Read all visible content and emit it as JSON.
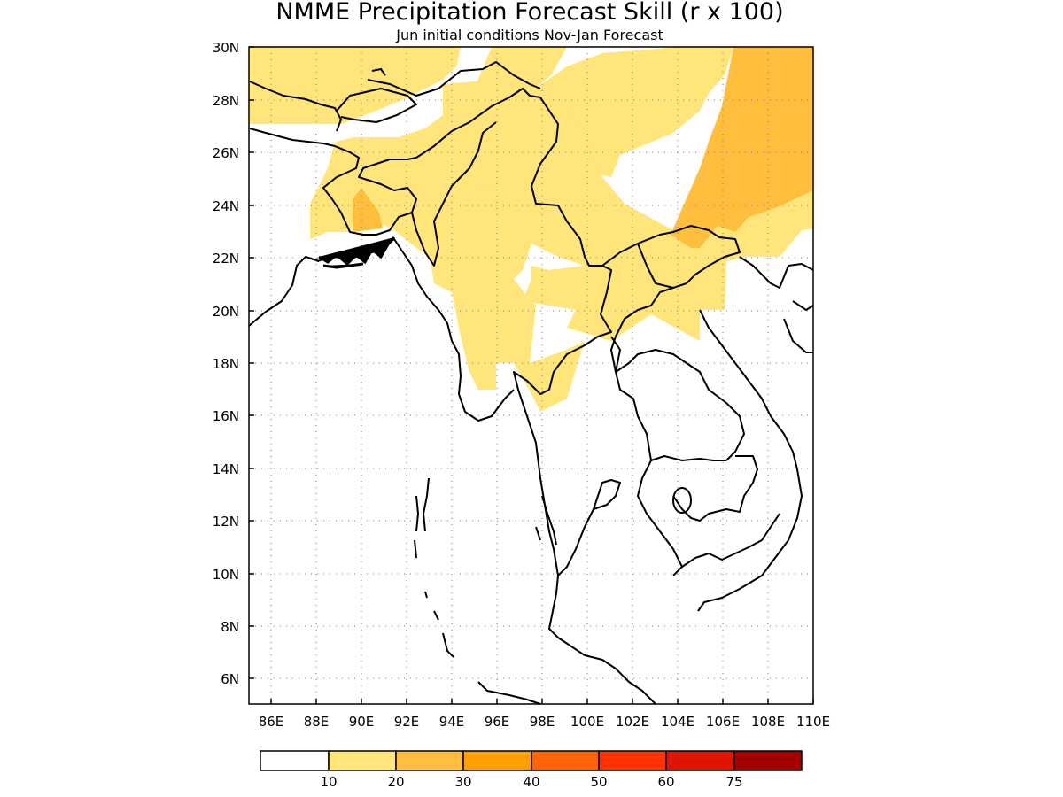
{
  "title": "NMME Precipitation Forecast Skill (r x 100)",
  "subtitle": "Jun initial conditions  Nov-Jan Forecast",
  "axes": {
    "lat_ticks": [
      "30N",
      "28N",
      "26N",
      "24N",
      "22N",
      "20N",
      "18N",
      "16N",
      "14N",
      "12N",
      "10N",
      "8N",
      "6N"
    ],
    "lon_ticks": [
      "86E",
      "88E",
      "90E",
      "92E",
      "94E",
      "96E",
      "98E",
      "100E",
      "102E",
      "104E",
      "106E",
      "108E",
      "110E"
    ],
    "lon_range": [
      84.8,
      110
    ],
    "lat_range": [
      5,
      30
    ],
    "grid": "dotted"
  },
  "colorbar": {
    "colors": [
      "#ffffff",
      "#ffe57a",
      "#ffbe3c",
      "#ff9f00",
      "#ff6400",
      "#ff3200",
      "#e01400",
      "#a50000"
    ],
    "labels": [
      "10",
      "20",
      "30",
      "40",
      "50",
      "60",
      "75"
    ]
  },
  "skill_regions": [
    {
      "level": "10-20",
      "color": "#ffe57a",
      "area": "Bangladesh, Myanmar, Yunnan"
    },
    {
      "level": "20-30",
      "color": "#ffbe3c",
      "area": "southeast China"
    },
    {
      "level": "20-30",
      "color": "#ffbe3c",
      "area": "Bangladesh coast"
    }
  ]
}
